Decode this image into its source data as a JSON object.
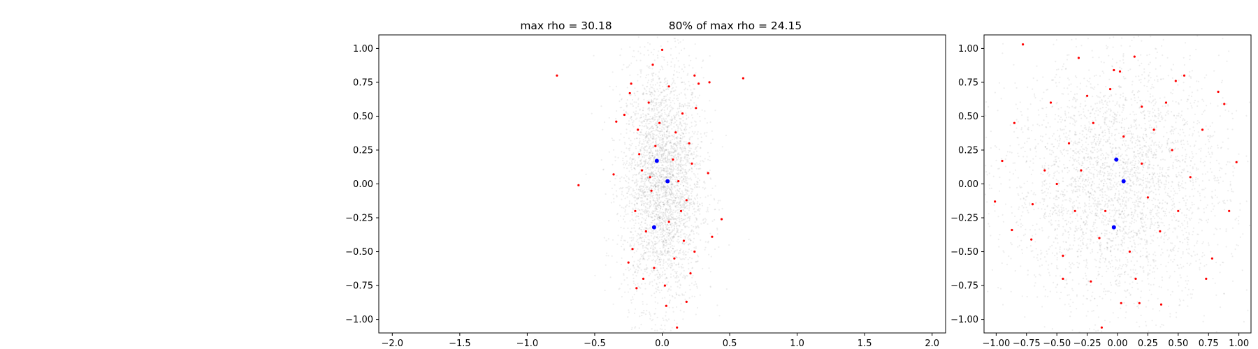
{
  "chart_data": [
    {
      "type": "scatter",
      "title_left": "max rho = 30.18",
      "title_right": "80% of max rho = 24.15",
      "xlabel": "",
      "ylabel": "",
      "xlim": [
        -2.1,
        2.1
      ],
      "ylim": [
        -1.1,
        1.1
      ],
      "x_ticks": [
        -2.0,
        -1.5,
        -1.0,
        -0.5,
        0.0,
        0.5,
        1.0,
        1.5,
        2.0
      ],
      "x_tick_labels": [
        "−2.0",
        "−1.5",
        "−1.0",
        "−0.5",
        "0.0",
        "0.5",
        "1.0",
        "1.5",
        "2.0"
      ],
      "y_ticks": [
        1.0,
        0.75,
        0.5,
        0.25,
        0.0,
        -0.25,
        -0.5,
        -0.75,
        -1.0
      ],
      "y_tick_labels": [
        "1.00",
        "0.75",
        "0.50",
        "0.25",
        "0.00",
        "−0.25",
        "−0.50",
        "−0.75",
        "−1.00"
      ],
      "grid": false,
      "background_cloud": {
        "color": "#000000",
        "x_spread": 0.15,
        "y_spread": 0.45
      },
      "series": [
        {
          "color": "#ff0000",
          "points": [
            [
              -0.78,
              0.8
            ],
            [
              0.6,
              0.78
            ],
            [
              -0.62,
              -0.01
            ],
            [
              0.0,
              0.99
            ],
            [
              -0.07,
              0.88
            ],
            [
              -0.23,
              0.74
            ],
            [
              0.24,
              0.8
            ],
            [
              0.27,
              0.74
            ],
            [
              0.35,
              0.75
            ],
            [
              0.44,
              -0.26
            ],
            [
              0.37,
              -0.39
            ],
            [
              0.11,
              -1.06
            ],
            [
              -0.19,
              -0.77
            ],
            [
              0.03,
              -0.9
            ],
            [
              0.18,
              -0.87
            ],
            [
              -0.34,
              0.46
            ],
            [
              -0.28,
              0.51
            ],
            [
              -0.36,
              0.07
            ],
            [
              0.34,
              0.08
            ],
            [
              0.25,
              0.56
            ],
            [
              -0.24,
              0.67
            ],
            [
              0.05,
              0.72
            ],
            [
              -0.1,
              0.6
            ],
            [
              0.15,
              0.52
            ],
            [
              -0.18,
              0.4
            ],
            [
              0.2,
              0.3
            ],
            [
              -0.05,
              0.28
            ],
            [
              0.08,
              0.18
            ],
            [
              -0.15,
              0.1
            ],
            [
              0.12,
              0.02
            ],
            [
              -0.08,
              -0.05
            ],
            [
              0.18,
              -0.12
            ],
            [
              -0.2,
              -0.2
            ],
            [
              0.05,
              -0.28
            ],
            [
              -0.12,
              -0.35
            ],
            [
              0.16,
              -0.42
            ],
            [
              -0.22,
              -0.48
            ],
            [
              0.09,
              -0.55
            ],
            [
              -0.06,
              -0.62
            ],
            [
              0.21,
              -0.66
            ],
            [
              -0.14,
              -0.7
            ],
            [
              0.02,
              -0.75
            ],
            [
              -0.25,
              -0.58
            ],
            [
              0.24,
              -0.5
            ],
            [
              -0.02,
              0.45
            ],
            [
              0.1,
              0.38
            ],
            [
              -0.17,
              0.22
            ],
            [
              0.22,
              0.15
            ],
            [
              -0.09,
              0.05
            ],
            [
              0.14,
              -0.2
            ]
          ]
        },
        {
          "color": "#0000ff",
          "points": [
            [
              -0.04,
              0.17
            ],
            [
              0.04,
              0.02
            ],
            [
              -0.06,
              -0.32
            ]
          ]
        }
      ]
    },
    {
      "type": "scatter",
      "title": "",
      "xlabel": "",
      "ylabel": "",
      "xlim": [
        -1.1,
        1.1
      ],
      "ylim": [
        -1.1,
        1.1
      ],
      "x_ticks": [
        -1.0,
        -0.75,
        -0.5,
        -0.25,
        0.0,
        0.25,
        0.5,
        0.75,
        1.0
      ],
      "x_tick_labels": [
        "−1.00",
        "−0.75",
        "−0.50",
        "−0.25",
        "0.00",
        "0.25",
        "0.50",
        "0.75",
        "1.00"
      ],
      "y_ticks": [
        1.0,
        0.75,
        0.5,
        0.25,
        0.0,
        -0.25,
        -0.5,
        -0.75,
        -1.0
      ],
      "y_tick_labels": [
        "1.00",
        "0.75",
        "0.50",
        "0.25",
        "0.00",
        "−0.25",
        "−0.50",
        "−0.75",
        "−1.00"
      ],
      "grid": false,
      "background_cloud": {
        "color": "#000000",
        "x_spread": 0.45,
        "y_spread": 0.45
      },
      "series": [
        {
          "color": "#ff0000",
          "points": [
            [
              -0.78,
              1.03
            ],
            [
              -0.32,
              0.93
            ],
            [
              -0.03,
              0.84
            ],
            [
              0.02,
              0.83
            ],
            [
              -0.06,
              0.7
            ],
            [
              0.2,
              0.57
            ],
            [
              0.14,
              0.94
            ],
            [
              0.48,
              0.76
            ],
            [
              0.55,
              0.8
            ],
            [
              0.83,
              0.68
            ],
            [
              0.88,
              0.59
            ],
            [
              -0.85,
              0.45
            ],
            [
              -0.95,
              0.17
            ],
            [
              -1.01,
              -0.13
            ],
            [
              -0.87,
              -0.34
            ],
            [
              -0.71,
              -0.41
            ],
            [
              -0.45,
              -0.53
            ],
            [
              -0.22,
              -0.72
            ],
            [
              0.03,
              -0.88
            ],
            [
              0.18,
              -0.88
            ],
            [
              -0.13,
              -1.06
            ],
            [
              0.36,
              -0.89
            ],
            [
              0.73,
              -0.7
            ],
            [
              0.78,
              -0.55
            ],
            [
              0.98,
              0.16
            ],
            [
              0.92,
              -0.2
            ],
            [
              -0.6,
              0.1
            ],
            [
              -0.4,
              0.3
            ],
            [
              -0.2,
              0.45
            ],
            [
              0.3,
              0.4
            ],
            [
              0.45,
              0.25
            ],
            [
              0.6,
              0.05
            ],
            [
              0.5,
              -0.2
            ],
            [
              0.35,
              -0.35
            ],
            [
              0.1,
              -0.5
            ],
            [
              -0.15,
              -0.4
            ],
            [
              -0.35,
              -0.2
            ],
            [
              -0.5,
              0.0
            ],
            [
              -0.3,
              0.1
            ],
            [
              0.2,
              0.15
            ],
            [
              0.25,
              -0.1
            ],
            [
              -0.1,
              -0.2
            ],
            [
              0.05,
              0.35
            ],
            [
              -0.7,
              -0.15
            ],
            [
              0.7,
              0.4
            ],
            [
              -0.55,
              0.6
            ],
            [
              0.4,
              0.6
            ],
            [
              -0.25,
              0.65
            ],
            [
              0.15,
              -0.7
            ],
            [
              -0.45,
              -0.7
            ]
          ]
        },
        {
          "color": "#0000ff",
          "points": [
            [
              -0.01,
              0.18
            ],
            [
              0.05,
              0.02
            ],
            [
              -0.03,
              -0.32
            ]
          ]
        }
      ]
    }
  ]
}
